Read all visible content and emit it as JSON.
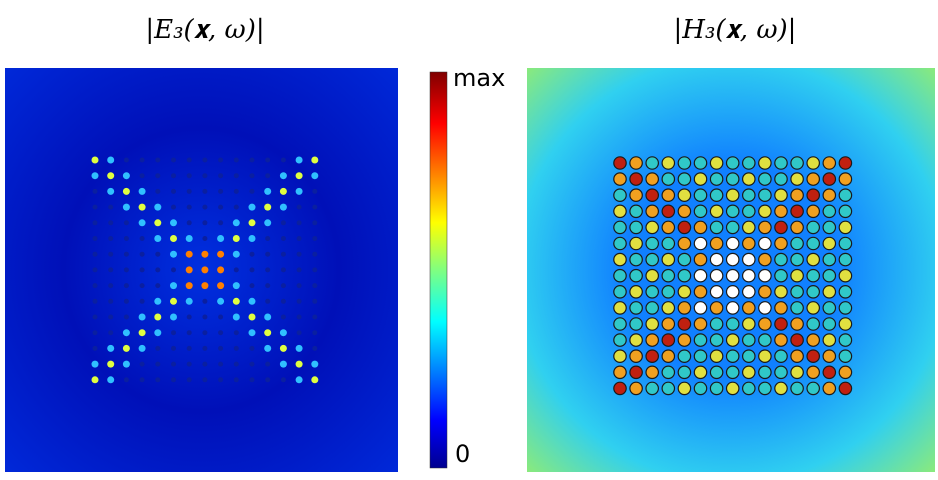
{
  "panels": [
    {
      "title": "|E₃(𝐱, ω)|"
    },
    {
      "title": "|H₃(𝐱, ω)|"
    }
  ],
  "colorbar": {
    "max_label": "max",
    "min_label": "0"
  }
}
